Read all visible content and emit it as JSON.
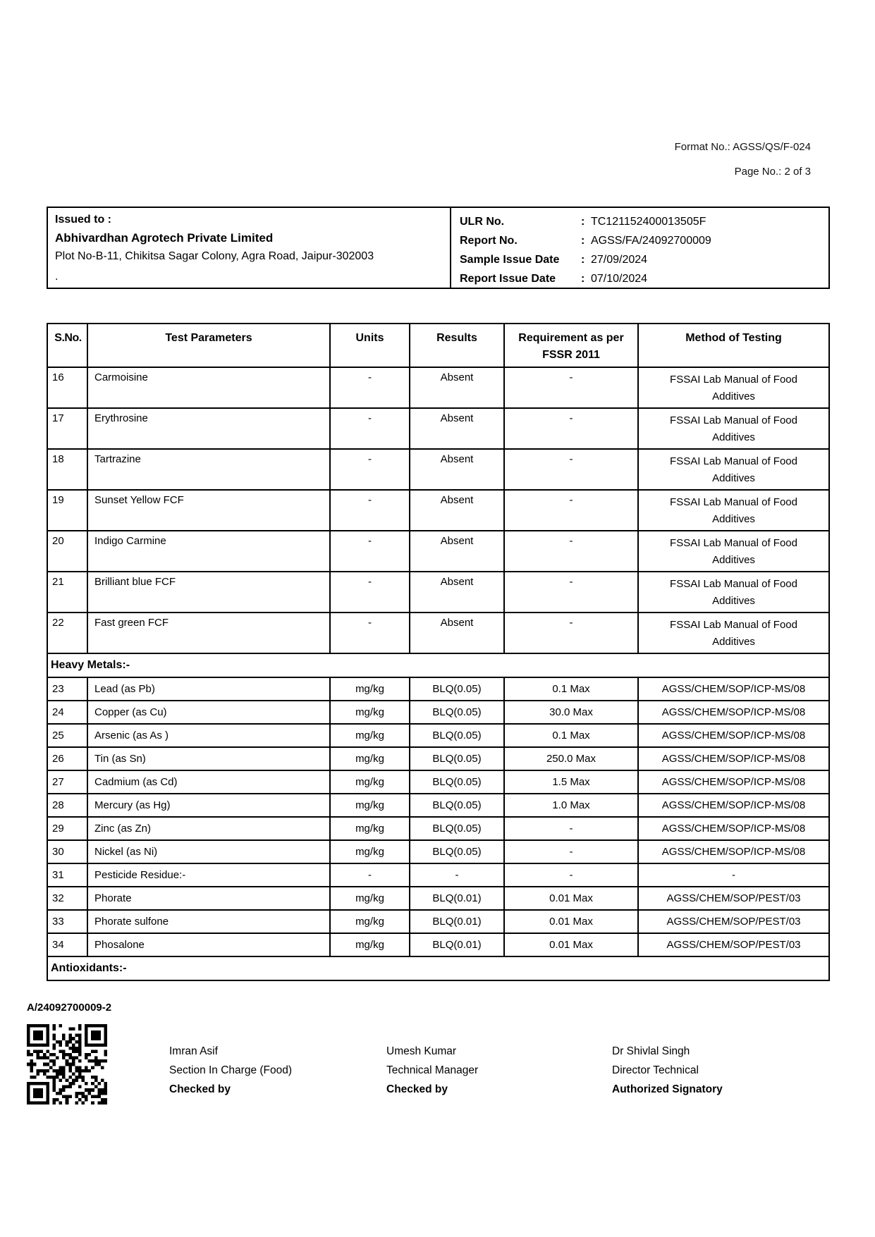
{
  "header": {
    "format_no": "Format No.: AGSS/QS/F-024",
    "page_no": "Page No.: 2 of 3"
  },
  "issued_to": {
    "label": "Issued to :",
    "company": "Abhivardhan Agrotech Private Limited",
    "address": "Plot No-B-11, Chikitsa Sagar Colony, Agra Road, Jaipur-302003",
    "note": "."
  },
  "report_info": {
    "separator": ":",
    "rows": [
      {
        "label": "ULR No.",
        "value": "TC121152400013505F"
      },
      {
        "label": "Report No.",
        "value": "AGSS/FA/24092700009"
      },
      {
        "label": "Sample Issue Date",
        "value": "27/09/2024"
      },
      {
        "label": "Report Issue Date",
        "value": "07/10/2024"
      }
    ]
  },
  "table": {
    "headers": [
      "S.No.",
      "Test Parameters",
      "Units",
      "Results",
      "Requirement as per FSSR 2011",
      "Method of Testing"
    ],
    "rows": [
      {
        "type": "data",
        "no": "16",
        "param": "Carmoisine",
        "units": "-",
        "results": "Absent",
        "requirement": "-",
        "method": "FSSAI Lab Manual of Food Additives"
      },
      {
        "type": "data",
        "no": "17",
        "param": "Erythrosine",
        "units": "-",
        "results": "Absent",
        "requirement": "-",
        "method": "FSSAI Lab Manual of Food Additives"
      },
      {
        "type": "data",
        "no": "18",
        "param": "Tartrazine",
        "units": "-",
        "results": "Absent",
        "requirement": "-",
        "method": "FSSAI Lab Manual of Food Additives"
      },
      {
        "type": "data",
        "no": "19",
        "param": "Sunset Yellow FCF",
        "units": "-",
        "results": "Absent",
        "requirement": "-",
        "method": "FSSAI Lab Manual of Food Additives"
      },
      {
        "type": "data",
        "no": "20",
        "param": "Indigo Carmine",
        "units": "-",
        "results": "Absent",
        "requirement": "-",
        "method": "FSSAI Lab Manual of Food Additives"
      },
      {
        "type": "data",
        "no": "21",
        "param": "Brilliant blue FCF",
        "units": "-",
        "results": "Absent",
        "requirement": "-",
        "method": "FSSAI Lab Manual of Food Additives"
      },
      {
        "type": "data",
        "no": "22",
        "param": "Fast green FCF",
        "units": "-",
        "results": "Absent",
        "requirement": "-",
        "method": "FSSAI Lab Manual of Food Additives"
      },
      {
        "type": "section",
        "label": "Heavy Metals:-"
      },
      {
        "type": "data",
        "no": "23",
        "param": "Lead (as Pb)",
        "units": "mg/kg",
        "results": "BLQ(0.05)",
        "requirement": "0.1 Max",
        "method": "AGSS/CHEM/SOP/ICP-MS/08"
      },
      {
        "type": "data",
        "no": "24",
        "param": "Copper (as Cu)",
        "units": "mg/kg",
        "results": "BLQ(0.05)",
        "requirement": "30.0 Max",
        "method": "AGSS/CHEM/SOP/ICP-MS/08"
      },
      {
        "type": "data",
        "no": "25",
        "param": "Arsenic (as As )",
        "units": "mg/kg",
        "results": "BLQ(0.05)",
        "requirement": "0.1 Max",
        "method": "AGSS/CHEM/SOP/ICP-MS/08"
      },
      {
        "type": "data",
        "no": "26",
        "param": "Tin (as Sn)",
        "units": "mg/kg",
        "results": "BLQ(0.05)",
        "requirement": "250.0 Max",
        "method": "AGSS/CHEM/SOP/ICP-MS/08"
      },
      {
        "type": "data",
        "no": "27",
        "param": "Cadmium (as Cd)",
        "units": "mg/kg",
        "results": "BLQ(0.05)",
        "requirement": "1.5 Max",
        "method": "AGSS/CHEM/SOP/ICP-MS/08"
      },
      {
        "type": "data",
        "no": "28",
        "param": "Mercury (as Hg)",
        "units": "mg/kg",
        "results": "BLQ(0.05)",
        "requirement": "1.0 Max",
        "method": "AGSS/CHEM/SOP/ICP-MS/08"
      },
      {
        "type": "data",
        "no": "29",
        "param": "Zinc (as Zn)",
        "units": "mg/kg",
        "results": "BLQ(0.05)",
        "requirement": "-",
        "method": "AGSS/CHEM/SOP/ICP-MS/08"
      },
      {
        "type": "data",
        "no": "30",
        "param": "Nickel (as Ni)",
        "units": "mg/kg",
        "results": "BLQ(0.05)",
        "requirement": "-",
        "method": "AGSS/CHEM/SOP/ICP-MS/08"
      },
      {
        "type": "data",
        "no": "31",
        "param": "Pesticide Residue:-",
        "units": "-",
        "results": "-",
        "requirement": "-",
        "method": "-"
      },
      {
        "type": "data",
        "no": "32",
        "param": "Phorate",
        "units": "mg/kg",
        "results": "BLQ(0.01)",
        "requirement": "0.01 Max",
        "method": "AGSS/CHEM/SOP/PEST/03"
      },
      {
        "type": "data",
        "no": "33",
        "param": "Phorate sulfone",
        "units": "mg/kg",
        "results": "BLQ(0.01)",
        "requirement": "0.01 Max",
        "method": "AGSS/CHEM/SOP/PEST/03"
      },
      {
        "type": "data",
        "no": "34",
        "param": "Phosalone",
        "units": "mg/kg",
        "results": "BLQ(0.01)",
        "requirement": "0.01 Max",
        "method": "AGSS/CHEM/SOP/PEST/03"
      },
      {
        "type": "section",
        "label": "Antioxidants:-"
      }
    ]
  },
  "footer": {
    "sample_id": "A/24092700009-2",
    "qr_icon": "qr-code",
    "signatures": [
      {
        "name": "Imran Asif",
        "title": "Section In Charge (Food)",
        "role": "Checked by"
      },
      {
        "name": "Umesh Kumar",
        "title": "Technical Manager",
        "role": "Checked by"
      },
      {
        "name": "Dr Shivlal Singh",
        "title": "Director Technical",
        "role": "Authorized Signatory"
      }
    ]
  }
}
